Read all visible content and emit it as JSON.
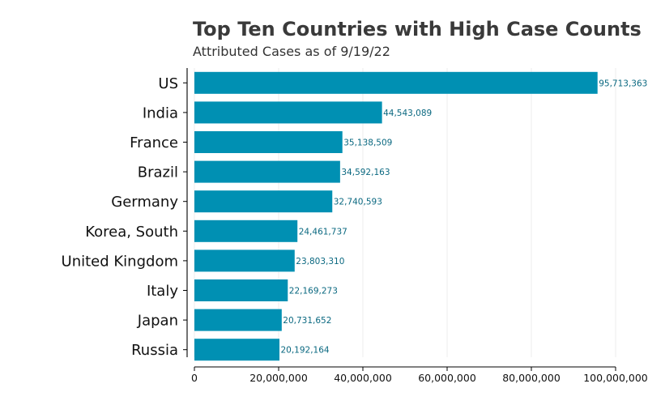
{
  "chart_data": {
    "type": "bar",
    "orientation": "horizontal",
    "title": "Top Ten Countries with High Case Counts",
    "subtitle": "Attributed Cases as of 9/19/22",
    "xlabel": "",
    "ylabel": "",
    "categories": [
      "US",
      "India",
      "France",
      "Brazil",
      "Germany",
      "Korea, South",
      "United Kingdom",
      "Italy",
      "Japan",
      "Russia"
    ],
    "values": [
      95713363,
      44543089,
      35138509,
      34592163,
      32740593,
      24461737,
      23803310,
      22169273,
      20731652,
      20192164
    ],
    "value_labels": [
      "95,713,363",
      "44,543,089",
      "35,138,509",
      "34,592,163",
      "32,740,593",
      "24,461,737",
      "23,803,310",
      "22,169,273",
      "20,731,652",
      "20,192,164"
    ],
    "xlim": [
      0,
      100000000
    ],
    "x_ticks": [
      0,
      20000000,
      40000000,
      60000000,
      80000000,
      100000000
    ],
    "x_tick_labels": [
      "0",
      "20,000,000",
      "40,000,000",
      "60,000,000",
      "80,000,000",
      "100,000,000"
    ],
    "grid": "vertical",
    "colors": {
      "bar": "#0090b3",
      "label": "#0a6880",
      "title": "#3a3a3a",
      "grid": "#eeeeee"
    }
  }
}
